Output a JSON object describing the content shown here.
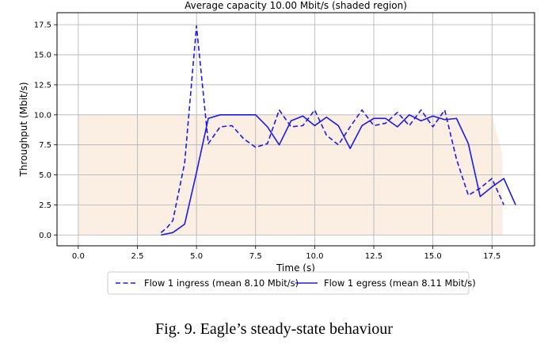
{
  "chart_data": {
    "type": "line",
    "title": "Average capacity 10.00 Mbit/s (shaded region)",
    "xlabel": "Time (s)",
    "ylabel": "Throughput (Mbit/s)",
    "xlim": [
      -0.9,
      19.3
    ],
    "ylim": [
      -0.9,
      18.5
    ],
    "xticks": [
      0,
      2.5,
      5,
      7.5,
      10,
      12.5,
      15,
      17.5
    ],
    "xtick_labels": [
      "0.0",
      "2.5",
      "5.0",
      "7.5",
      "10.0",
      "12.5",
      "15.0",
      "17.5"
    ],
    "yticks": [
      0,
      2.5,
      5,
      7.5,
      10,
      12.5,
      15,
      17.5
    ],
    "ytick_labels": [
      "0.0",
      "2.5",
      "5.0",
      "7.5",
      "10.0",
      "12.5",
      "15.0",
      "17.5"
    ],
    "grid": true,
    "legend_position": "bottom-center",
    "capacity_region": {
      "x": [
        0,
        17.5,
        17.9,
        17.95
      ],
      "y": [
        10,
        10,
        7.0,
        5.8
      ],
      "end_x": 17.95,
      "color": "#fbeee3"
    },
    "series": [
      {
        "name": "Flow 1 ingress (mean 8.10 Mbit/s)",
        "style": "dashed",
        "color": "#1a1aee",
        "x": [
          3.5,
          3.75,
          4.0,
          4.5,
          5.0,
          5.5,
          6.0,
          6.5,
          7.0,
          7.5,
          8.0,
          8.5,
          9.0,
          9.5,
          10.0,
          10.5,
          11.0,
          11.5,
          12.0,
          12.5,
          13.0,
          13.5,
          14.0,
          14.5,
          15.0,
          15.5,
          16.0,
          16.5,
          17.0,
          17.5,
          18.0
        ],
        "y": [
          0.2,
          0.6,
          1.2,
          6.0,
          17.4,
          7.6,
          9.0,
          9.1,
          8.0,
          7.3,
          7.6,
          10.4,
          9.0,
          9.1,
          10.4,
          8.3,
          7.5,
          9.0,
          10.4,
          9.1,
          9.3,
          10.2,
          9.1,
          10.4,
          9.0,
          10.4,
          6.3,
          3.3,
          3.9,
          4.7,
          2.5
        ]
      },
      {
        "name": "Flow 1 egress (mean 8.11 Mbit/s)",
        "style": "solid",
        "color": "#1a1aee",
        "x": [
          3.5,
          4.0,
          4.5,
          5.0,
          5.5,
          6.0,
          6.5,
          7.0,
          7.5,
          8.0,
          8.5,
          9.0,
          9.5,
          10.0,
          10.5,
          11.0,
          11.5,
          12.0,
          12.5,
          13.0,
          13.5,
          14.0,
          14.5,
          15.0,
          15.5,
          16.0,
          16.5,
          17.0,
          17.5,
          18.0,
          18.5
        ],
        "y": [
          0.0,
          0.2,
          0.9,
          5.2,
          9.7,
          10.0,
          10.0,
          10.0,
          10.0,
          9.0,
          7.5,
          9.5,
          9.9,
          9.1,
          9.8,
          9.1,
          7.2,
          9.1,
          9.7,
          9.7,
          9.0,
          10.0,
          9.5,
          9.9,
          9.6,
          9.7,
          7.6,
          3.2,
          4.0,
          4.7,
          2.5
        ]
      }
    ]
  },
  "caption": "Fig. 9.  Eagle’s steady-state behaviour"
}
